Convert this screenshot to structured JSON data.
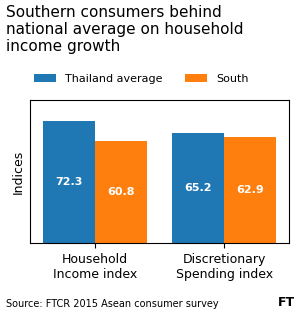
{
  "chart_data": {
    "type": "bar",
    "title": "Southern consumers behind\nnational average on household\nincome growth",
    "ylabel": "Indices",
    "categories": [
      "Household\nIncome index",
      "Discretionary\nSpending index"
    ],
    "series": [
      {
        "name": "Thailand average",
        "values": [
          72.3,
          65.2
        ]
      },
      {
        "name": "South",
        "values": [
          60.8,
          62.9
        ]
      }
    ],
    "ylim": [
      0,
      85
    ],
    "tick_labels": "x",
    "data_labels": true,
    "legend": "upper left",
    "grid": false,
    "annotations": [
      "Source: FTCR 2015 Asean consumer survey",
      "FT"
    ]
  }
}
